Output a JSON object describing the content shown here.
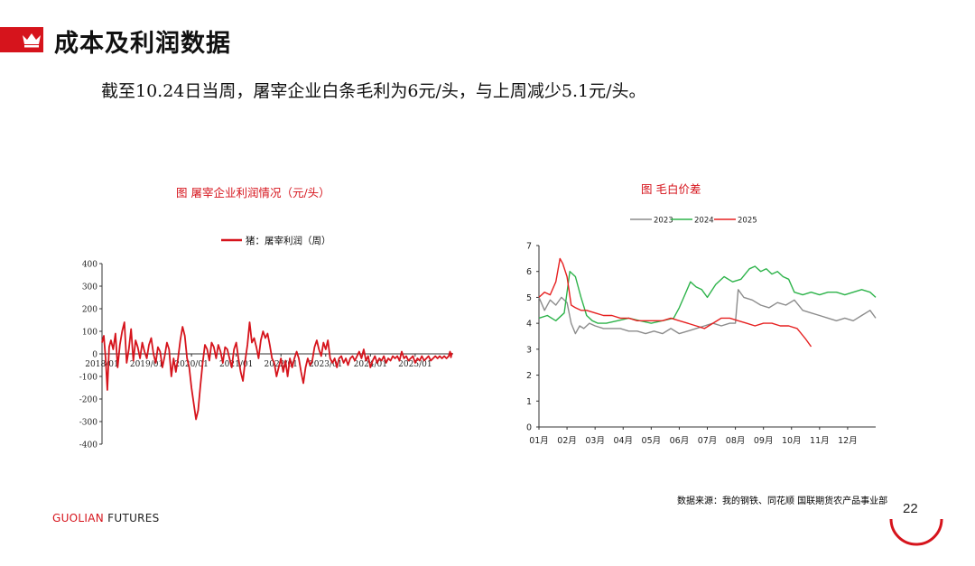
{
  "slide": {
    "title": "成本及利润数据",
    "subtitle": "截至10.24日当周，屠宰企业白条毛利为6元/头，与上周减少5.1元/头。",
    "source": "数据来源：我的钢铁、同花顺  国联期货农产品事业部",
    "brand_a": "GUOLIAN",
    "brand_b": " FUTURES",
    "page_number": "22",
    "accent_color": "#d6141c"
  },
  "chart_data": [
    {
      "type": "line",
      "title": "图  屠宰企业利润情况（元/头）",
      "legend": "猪：屠宰利润（周）",
      "series_color": "#d6141c",
      "ylim": [
        -400,
        400
      ],
      "yticks": [
        400,
        300,
        200,
        100,
        0,
        -100,
        -200,
        -300,
        -400
      ],
      "xlim": [
        2018.0,
        2025.85
      ],
      "xticks": [
        {
          "label": "2018/01",
          "x": 2018.0
        },
        {
          "label": "2019/01",
          "x": 2019.0
        },
        {
          "label": "2020/01",
          "x": 2020.0
        },
        {
          "label": "2021/01",
          "x": 2021.0
        },
        {
          "label": "2022/01",
          "x": 2022.0
        },
        {
          "label": "2023/01",
          "x": 2023.0
        },
        {
          "label": "2024/01",
          "x": 2024.0
        },
        {
          "label": "2025/01",
          "x": 2025.0
        }
      ],
      "points": [
        [
          2018.0,
          50
        ],
        [
          2018.04,
          80
        ],
        [
          2018.08,
          -20
        ],
        [
          2018.12,
          -160
        ],
        [
          2018.16,
          30
        ],
        [
          2018.2,
          60
        ],
        [
          2018.25,
          20
        ],
        [
          2018.3,
          90
        ],
        [
          2018.35,
          -60
        ],
        [
          2018.4,
          40
        ],
        [
          2018.45,
          100
        ],
        [
          2018.5,
          140
        ],
        [
          2018.55,
          -40
        ],
        [
          2018.6,
          20
        ],
        [
          2018.65,
          110
        ],
        [
          2018.7,
          -30
        ],
        [
          2018.75,
          60
        ],
        [
          2018.8,
          30
        ],
        [
          2018.85,
          -20
        ],
        [
          2018.9,
          50
        ],
        [
          2018.95,
          10
        ],
        [
          2019.0,
          -20
        ],
        [
          2019.05,
          40
        ],
        [
          2019.1,
          70
        ],
        [
          2019.15,
          0
        ],
        [
          2019.2,
          -40
        ],
        [
          2019.25,
          30
        ],
        [
          2019.3,
          10
        ],
        [
          2019.35,
          -60
        ],
        [
          2019.4,
          -10
        ],
        [
          2019.45,
          50
        ],
        [
          2019.5,
          20
        ],
        [
          2019.55,
          -100
        ],
        [
          2019.6,
          -20
        ],
        [
          2019.65,
          -80
        ],
        [
          2019.7,
          -20
        ],
        [
          2019.75,
          60
        ],
        [
          2019.8,
          120
        ],
        [
          2019.85,
          80
        ],
        [
          2019.9,
          -20
        ],
        [
          2019.95,
          -60
        ],
        [
          2020.0,
          -150
        ],
        [
          2020.05,
          -220
        ],
        [
          2020.1,
          -290
        ],
        [
          2020.15,
          -250
        ],
        [
          2020.2,
          -140
        ],
        [
          2020.25,
          -40
        ],
        [
          2020.3,
          40
        ],
        [
          2020.35,
          20
        ],
        [
          2020.4,
          -30
        ],
        [
          2020.45,
          50
        ],
        [
          2020.5,
          30
        ],
        [
          2020.55,
          -20
        ],
        [
          2020.6,
          40
        ],
        [
          2020.65,
          10
        ],
        [
          2020.7,
          -40
        ],
        [
          2020.75,
          30
        ],
        [
          2020.8,
          20
        ],
        [
          2020.85,
          -20
        ],
        [
          2020.9,
          -60
        ],
        [
          2020.95,
          20
        ],
        [
          2021.0,
          50
        ],
        [
          2021.05,
          -20
        ],
        [
          2021.1,
          -80
        ],
        [
          2021.15,
          -120
        ],
        [
          2021.2,
          -30
        ],
        [
          2021.25,
          40
        ],
        [
          2021.3,
          140
        ],
        [
          2021.35,
          50
        ],
        [
          2021.4,
          70
        ],
        [
          2021.45,
          30
        ],
        [
          2021.5,
          -20
        ],
        [
          2021.55,
          60
        ],
        [
          2021.6,
          100
        ],
        [
          2021.65,
          70
        ],
        [
          2021.7,
          90
        ],
        [
          2021.75,
          40
        ],
        [
          2021.8,
          -20
        ],
        [
          2021.85,
          -40
        ],
        [
          2021.9,
          -100
        ],
        [
          2021.95,
          -60
        ],
        [
          2022.0,
          -20
        ],
        [
          2022.05,
          -80
        ],
        [
          2022.1,
          -30
        ],
        [
          2022.15,
          -100
        ],
        [
          2022.2,
          -20
        ],
        [
          2022.25,
          -60
        ],
        [
          2022.3,
          -20
        ],
        [
          2022.35,
          10
        ],
        [
          2022.4,
          -20
        ],
        [
          2022.45,
          -80
        ],
        [
          2022.5,
          -130
        ],
        [
          2022.55,
          -60
        ],
        [
          2022.6,
          -20
        ],
        [
          2022.65,
          -50
        ],
        [
          2022.7,
          -30
        ],
        [
          2022.75,
          30
        ],
        [
          2022.8,
          60
        ],
        [
          2022.85,
          20
        ],
        [
          2022.9,
          -10
        ],
        [
          2022.95,
          50
        ],
        [
          2023.0,
          20
        ],
        [
          2023.05,
          60
        ],
        [
          2023.1,
          -20
        ],
        [
          2023.15,
          -40
        ],
        [
          2023.2,
          -20
        ],
        [
          2023.25,
          -60
        ],
        [
          2023.3,
          -20
        ],
        [
          2023.35,
          -10
        ],
        [
          2023.4,
          -40
        ],
        [
          2023.45,
          -20
        ],
        [
          2023.5,
          -50
        ],
        [
          2023.55,
          -20
        ],
        [
          2023.6,
          -10
        ],
        [
          2023.65,
          -30
        ],
        [
          2023.7,
          -10
        ],
        [
          2023.75,
          10
        ],
        [
          2023.8,
          -20
        ],
        [
          2023.85,
          20
        ],
        [
          2023.9,
          -30
        ],
        [
          2023.95,
          -10
        ],
        [
          2024.0,
          -60
        ],
        [
          2024.05,
          -30
        ],
        [
          2024.1,
          -10
        ],
        [
          2024.15,
          -40
        ],
        [
          2024.2,
          -20
        ],
        [
          2024.25,
          -30
        ],
        [
          2024.3,
          -10
        ],
        [
          2024.35,
          -40
        ],
        [
          2024.4,
          -20
        ],
        [
          2024.45,
          -30
        ],
        [
          2024.5,
          -10
        ],
        [
          2024.55,
          -20
        ],
        [
          2024.6,
          -10
        ],
        [
          2024.65,
          -30
        ],
        [
          2024.7,
          10
        ],
        [
          2024.75,
          -20
        ],
        [
          2024.8,
          -10
        ],
        [
          2024.85,
          -30
        ],
        [
          2024.9,
          -20
        ],
        [
          2024.95,
          -10
        ],
        [
          2025.0,
          -40
        ],
        [
          2025.05,
          -20
        ],
        [
          2025.1,
          -30
        ],
        [
          2025.15,
          -10
        ],
        [
          2025.2,
          -30
        ],
        [
          2025.25,
          -20
        ],
        [
          2025.3,
          -10
        ],
        [
          2025.35,
          -30
        ],
        [
          2025.4,
          -20
        ],
        [
          2025.45,
          -10
        ],
        [
          2025.5,
          -20
        ],
        [
          2025.55,
          -10
        ],
        [
          2025.6,
          -20
        ],
        [
          2025.65,
          -10
        ],
        [
          2025.7,
          -20
        ],
        [
          2025.75,
          -10
        ],
        [
          2025.78,
          10
        ],
        [
          2025.8,
          -15
        ],
        [
          2025.82,
          5
        ]
      ]
    },
    {
      "type": "line",
      "title": "图   毛白价差",
      "ylim": [
        0,
        7
      ],
      "yticks": [
        7,
        6,
        5,
        4,
        3,
        2,
        1,
        0
      ],
      "xlim": [
        1,
        13
      ],
      "xticks": [
        "01月",
        "02月",
        "03月",
        "04月",
        "05月",
        "06月",
        "07月",
        "08月",
        "09月",
        "10月",
        "11月",
        "12月"
      ],
      "series": [
        {
          "name": "2023",
          "color": "#8c8c8c",
          "x": [
            1.0,
            1.2,
            1.4,
            1.6,
            1.8,
            2.0,
            2.15,
            2.3,
            2.45,
            2.6,
            2.8,
            3.0,
            3.3,
            3.6,
            3.9,
            4.2,
            4.5,
            4.8,
            5.1,
            5.4,
            5.7,
            6.0,
            6.3,
            6.6,
            6.9,
            7.2,
            7.5,
            7.8,
            8.0,
            8.1,
            8.3,
            8.6,
            8.9,
            9.2,
            9.5,
            9.8,
            10.1,
            10.4,
            10.7,
            11.0,
            11.3,
            11.6,
            11.9,
            12.2,
            12.5,
            12.8,
            13.0
          ],
          "values": [
            5.0,
            4.5,
            4.9,
            4.7,
            5.0,
            4.8,
            4.0,
            3.6,
            3.9,
            3.8,
            4.0,
            3.9,
            3.8,
            3.8,
            3.8,
            3.7,
            3.7,
            3.6,
            3.7,
            3.6,
            3.8,
            3.6,
            3.7,
            3.8,
            3.9,
            4.0,
            3.9,
            4.0,
            4.0,
            5.3,
            5.0,
            4.9,
            4.7,
            4.6,
            4.8,
            4.7,
            4.9,
            4.5,
            4.4,
            4.3,
            4.2,
            4.1,
            4.2,
            4.1,
            4.3,
            4.5,
            4.2
          ]
        },
        {
          "name": "2024",
          "color": "#2db34a",
          "x": [
            1.0,
            1.3,
            1.6,
            1.9,
            2.1,
            2.3,
            2.5,
            2.7,
            2.9,
            3.1,
            3.4,
            3.8,
            4.2,
            4.6,
            5.0,
            5.4,
            5.8,
            6.0,
            6.2,
            6.4,
            6.6,
            6.8,
            7.0,
            7.3,
            7.6,
            7.9,
            8.2,
            8.5,
            8.7,
            8.9,
            9.1,
            9.3,
            9.5,
            9.7,
            9.9,
            10.1,
            10.4,
            10.7,
            11.0,
            11.3,
            11.6,
            11.9,
            12.2,
            12.5,
            12.8,
            13.0
          ],
          "values": [
            4.2,
            4.3,
            4.1,
            4.4,
            6.0,
            5.8,
            5.0,
            4.3,
            4.1,
            4.0,
            4.0,
            4.1,
            4.2,
            4.1,
            4.0,
            4.1,
            4.2,
            4.6,
            5.1,
            5.6,
            5.4,
            5.3,
            5.0,
            5.5,
            5.8,
            5.6,
            5.7,
            6.1,
            6.2,
            6.0,
            6.1,
            5.9,
            6.0,
            5.8,
            5.7,
            5.2,
            5.1,
            5.2,
            5.1,
            5.2,
            5.2,
            5.1,
            5.2,
            5.3,
            5.2,
            5.0
          ]
        },
        {
          "name": "2025",
          "color": "#e62020",
          "x": [
            1.0,
            1.2,
            1.4,
            1.6,
            1.75,
            1.85,
            2.0,
            2.15,
            2.3,
            2.5,
            2.7,
            3.0,
            3.3,
            3.6,
            3.9,
            4.2,
            4.5,
            4.8,
            5.1,
            5.4,
            5.7,
            6.0,
            6.3,
            6.6,
            6.9,
            7.2,
            7.5,
            7.8,
            8.1,
            8.4,
            8.7,
            9.0,
            9.3,
            9.6,
            9.9,
            10.2,
            10.5,
            10.7
          ],
          "values": [
            5.0,
            5.2,
            5.1,
            5.6,
            6.5,
            6.3,
            5.8,
            4.7,
            4.6,
            4.5,
            4.5,
            4.4,
            4.3,
            4.3,
            4.2,
            4.2,
            4.1,
            4.1,
            4.1,
            4.1,
            4.2,
            4.1,
            4.0,
            3.9,
            3.8,
            4.0,
            4.2,
            4.2,
            4.1,
            4.0,
            3.9,
            4.0,
            4.0,
            3.9,
            3.9,
            3.8,
            3.4,
            3.1
          ]
        }
      ]
    }
  ]
}
